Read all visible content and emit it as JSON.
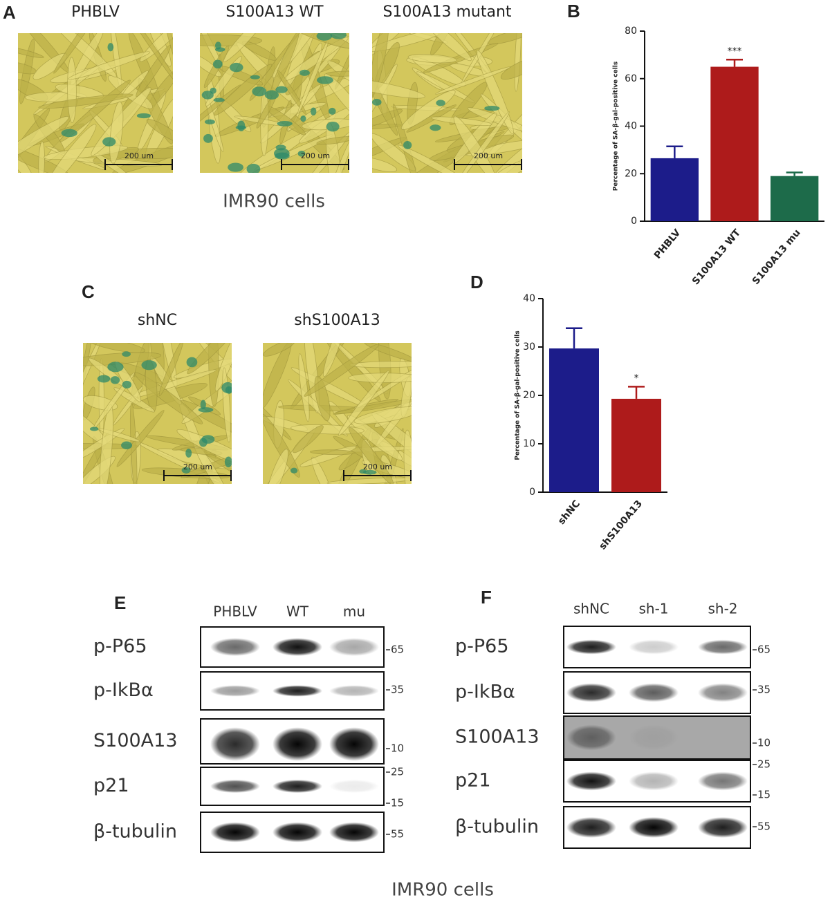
{
  "letters": [
    "A",
    "B",
    "C",
    "D",
    "E",
    "F"
  ],
  "panel_a": {
    "images": [
      {
        "label": "PHBLV",
        "scale": "200 um"
      },
      {
        "label": "S100A13 WT",
        "scale": "200 um"
      },
      {
        "label": "S100A13 mutant",
        "scale": "200 um"
      }
    ],
    "caption": "IMR90 cells"
  },
  "panel_c": {
    "images": [
      {
        "label": "shNC",
        "scale": "200 um"
      },
      {
        "label": "shS100A13",
        "scale": "200 um"
      }
    ]
  },
  "chart_data": [
    {
      "type": "bar",
      "y_label": "Percentage of SA-β-gal-positive cells",
      "categories": [
        "PHBLV",
        "S100A13 WT",
        "S100A13 mu"
      ],
      "values": [
        26.5,
        65,
        19
      ],
      "errors": [
        5,
        3,
        1.5
      ],
      "colors": [
        "#1c1c8a",
        "#ae1b1b",
        "#1d6b4a"
      ],
      "annotations": [
        {
          "category": "S100A13 WT",
          "text": "***"
        }
      ],
      "ylim": [
        0,
        80
      ],
      "yticks": [
        0,
        20,
        40,
        60,
        80
      ]
    },
    {
      "type": "bar",
      "y_label": "Percentage of SA-β-gal-positive cells",
      "categories": [
        "shNC",
        "shS100A13"
      ],
      "values": [
        29.7,
        19.3
      ],
      "errors": [
        4.2,
        2.5
      ],
      "colors": [
        "#1c1c8a",
        "#ae1b1b"
      ],
      "annotations": [
        {
          "category": "shS100A13",
          "text": "*"
        }
      ],
      "ylim": [
        0,
        40
      ],
      "yticks": [
        0,
        10,
        20,
        30,
        40
      ]
    }
  ],
  "panel_e": {
    "lanes": [
      "PHBLV",
      "WT",
      "mu"
    ],
    "rows": [
      {
        "label": "p-P65",
        "markers": [
          "65"
        ]
      },
      {
        "label": "p-IkBα",
        "markers": [
          "35"
        ]
      },
      {
        "label": "S100A13",
        "markers": [
          "10"
        ]
      },
      {
        "label": "p21",
        "markers": [
          "25",
          "15"
        ]
      },
      {
        "label": "β-tubulin",
        "markers": [
          "55"
        ]
      }
    ]
  },
  "panel_f": {
    "lanes": [
      "shNC",
      "sh-1",
      "sh-2"
    ],
    "rows": [
      {
        "label": "p-P65",
        "markers": [
          "65"
        ]
      },
      {
        "label": "p-IkBα",
        "markers": [
          "35"
        ]
      },
      {
        "label": "S100A13",
        "markers": [
          "10"
        ]
      },
      {
        "label": "p21",
        "markers": [
          "25",
          "15"
        ]
      },
      {
        "label": "β-tubulin",
        "markers": [
          "55"
        ]
      }
    ]
  },
  "caption": "IMR90 cells"
}
